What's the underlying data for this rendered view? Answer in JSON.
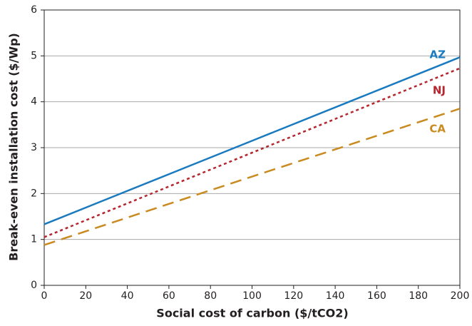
{
  "chart_data": {
    "type": "line",
    "xlabel": "Social cost of carbon ($/tCO2)",
    "ylabel": "Break-even installation cost ($/Wp)",
    "x": [
      0,
      100,
      200
    ],
    "series": [
      {
        "name": "AZ",
        "color": "#1a7abf",
        "style": "solid",
        "values": [
          1.33,
          3.15,
          4.97
        ]
      },
      {
        "name": "NJ",
        "color": "#b5262e",
        "style": "dotted",
        "values": [
          1.05,
          2.89,
          4.73
        ]
      },
      {
        "name": "CA",
        "color": "#c98a1f",
        "style": "dashed",
        "values": [
          0.88,
          2.37,
          3.85
        ]
      }
    ],
    "xlim": [
      0,
      200
    ],
    "xticks": [
      0,
      20,
      40,
      60,
      80,
      100,
      120,
      140,
      160,
      180,
      200
    ],
    "ylim": [
      0,
      6
    ],
    "yticks": [
      0,
      1,
      2,
      3,
      4,
      5,
      6
    ],
    "grid": true
  }
}
